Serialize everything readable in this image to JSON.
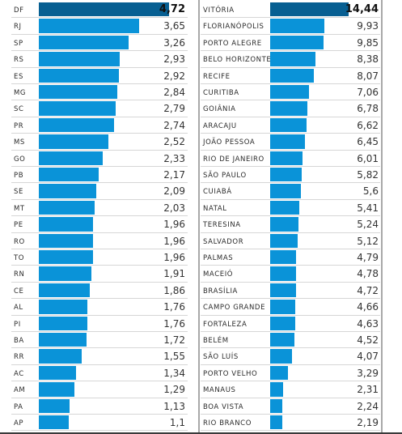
{
  "chart_data": [
    {
      "type": "bar",
      "orientation": "horizontal",
      "highlight_color": "#075f92",
      "bar_color": "#0a93d8",
      "categories": [
        "DF",
        "RJ",
        "SP",
        "RS",
        "ES",
        "MG",
        "SC",
        "PR",
        "MS",
        "GO",
        "PB",
        "SE",
        "MT",
        "PE",
        "RO",
        "TO",
        "RN",
        "CE",
        "AL",
        "PI",
        "BA",
        "RR",
        "AC",
        "AM",
        "PA",
        "AP"
      ],
      "values": [
        4.72,
        3.65,
        3.26,
        2.93,
        2.92,
        2.84,
        2.79,
        2.74,
        2.52,
        2.33,
        2.17,
        2.09,
        2.03,
        1.96,
        1.96,
        1.96,
        1.91,
        1.86,
        1.76,
        1.76,
        1.72,
        1.55,
        1.34,
        1.29,
        1.13,
        1.1
      ],
      "labels": [
        "4,72",
        "3,65",
        "3,26",
        "2,93",
        "2,92",
        "2,84",
        "2,79",
        "2,74",
        "2,52",
        "2,33",
        "2,17",
        "2,09",
        "2,03",
        "1,96",
        "1,96",
        "1,96",
        "1,91",
        "1,86",
        "1,76",
        "1,76",
        "1,72",
        "1,55",
        "1,34",
        "1,29",
        "1,13",
        "1,1"
      ]
    },
    {
      "type": "bar",
      "orientation": "horizontal",
      "highlight_color": "#075f92",
      "bar_color": "#0a93d8",
      "categories": [
        "VITÓRIA",
        "FLORIANÓPOLIS",
        "PORTO ALEGRE",
        "BELO HORIZONTE",
        "RECIFE",
        "CURITIBA",
        "GOIÂNIA",
        "ARACAJU",
        "JOÃO PESSOA",
        "RIO DE JANEIRO",
        "SÃO PAULO",
        "CUIABÁ",
        "NATAL",
        "TERESINA",
        "SALVADOR",
        "PALMAS",
        "MACEIÓ",
        "BRASÍLIA",
        "CAMPO GRANDE",
        "FORTALEZA",
        "BELÉM",
        "SÃO LUÍS",
        "PORTO VELHO",
        "MANAUS",
        "BOA VISTA",
        "RIO BRANCO"
      ],
      "values": [
        14.44,
        9.93,
        9.85,
        8.38,
        8.07,
        7.06,
        6.78,
        6.62,
        6.45,
        6.01,
        5.82,
        5.6,
        5.41,
        5.24,
        5.12,
        4.79,
        4.78,
        4.72,
        4.66,
        4.63,
        4.52,
        4.07,
        3.29,
        2.31,
        2.24,
        2.19
      ],
      "labels": [
        "14,44",
        "9,93",
        "9,85",
        "8,38",
        "8,07",
        "7,06",
        "6,78",
        "6,62",
        "6,45",
        "6,01",
        "5,82",
        "5,6",
        "5,41",
        "5,24",
        "5,12",
        "4,79",
        "4,78",
        "4,72",
        "4,66",
        "4,63",
        "4,52",
        "4,07",
        "3,29",
        "2,31",
        "2,24",
        "2,19"
      ]
    }
  ]
}
